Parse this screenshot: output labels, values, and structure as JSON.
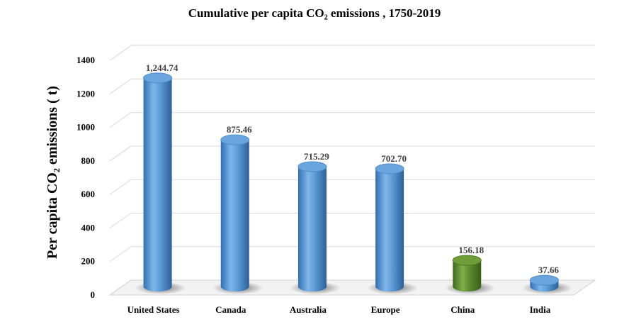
{
  "chart_data": {
    "type": "bar",
    "title": "Cumulative per capita  CO₂ emissions , 1750-2019",
    "xlabel": "",
    "ylabel": "Per capita CO₂ emissions ( t)",
    "categories": [
      "United States",
      "Canada",
      "Australia",
      "Europe",
      "China",
      "India"
    ],
    "values": [
      1244.74,
      875.46,
      715.29,
      702.7,
      156.18,
      37.66
    ],
    "value_labels": [
      "1,244.74",
      "875.46",
      "715.29",
      "702.70",
      "156.18",
      "37.66"
    ],
    "bar_colors": [
      "#5b9bd5",
      "#5b9bd5",
      "#5b9bd5",
      "#5b9bd5",
      "#5a8a2e",
      "#5b9bd5"
    ],
    "yticks": [
      0,
      200,
      400,
      600,
      800,
      1000,
      1200,
      1400
    ],
    "ylim": [
      0,
      1400
    ],
    "grid": true,
    "legend": "none",
    "style": "3d-cylinder"
  }
}
